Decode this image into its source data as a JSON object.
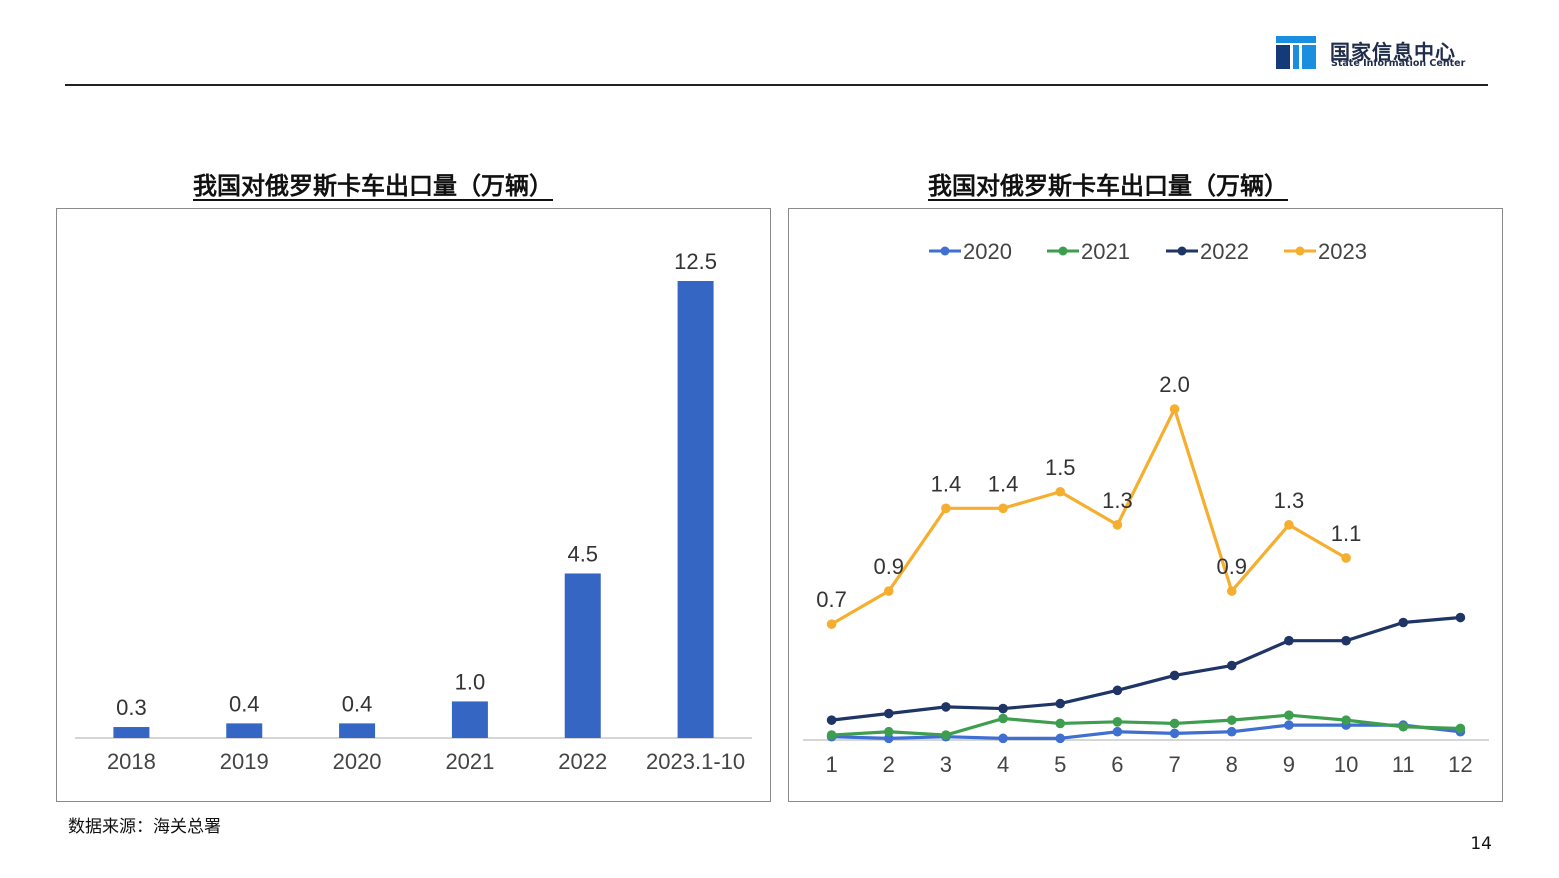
{
  "header": {
    "logo_cn": "国家信息中心",
    "logo_en": "State Information Center",
    "logo_colors": [
      "#1a8fe0",
      "#153a7a"
    ]
  },
  "source": "数据来源：海关总署",
  "page_number": "14",
  "chart_data": [
    {
      "type": "bar",
      "title": "我国对俄罗斯卡车出口量（万辆）",
      "categories": [
        "2018",
        "2019",
        "2020",
        "2021",
        "2022",
        "2023.1-10"
      ],
      "values": [
        0.3,
        0.4,
        0.4,
        1.0,
        4.5,
        12.5
      ],
      "value_labels": [
        "0.3",
        "0.4",
        "0.4",
        "1.0",
        "4.5",
        "12.5"
      ],
      "bar_color": "#3566c4",
      "ylim": [
        0,
        12.5
      ],
      "grid": false
    },
    {
      "type": "line",
      "title": "我国对俄罗斯卡车出口量（万辆）",
      "x": [
        "1",
        "2",
        "3",
        "4",
        "5",
        "6",
        "7",
        "8",
        "9",
        "10",
        "11",
        "12"
      ],
      "ylim": [
        0,
        2.0
      ],
      "grid": false,
      "legend_position": "top",
      "series": [
        {
          "name": "2020",
          "color": "#3f6fd0",
          "values": [
            0.02,
            0.01,
            0.02,
            0.01,
            0.01,
            0.05,
            0.04,
            0.05,
            0.09,
            0.09,
            0.09,
            0.05
          ]
        },
        {
          "name": "2021",
          "color": "#3e9e4f",
          "values": [
            0.03,
            0.05,
            0.03,
            0.13,
            0.1,
            0.11,
            0.1,
            0.12,
            0.15,
            0.12,
            0.08,
            0.07
          ]
        },
        {
          "name": "2022",
          "color": "#1f3566",
          "values": [
            0.12,
            0.16,
            0.2,
            0.19,
            0.22,
            0.3,
            0.39,
            0.45,
            0.6,
            0.6,
            0.71,
            0.74
          ]
        },
        {
          "name": "2023",
          "color": "#f5ae2e",
          "values": [
            0.7,
            0.9,
            1.4,
            1.4,
            1.5,
            1.3,
            2.0,
            0.9,
            1.3,
            1.1,
            null,
            null
          ],
          "value_labels": [
            "0.7",
            "0.9",
            "1.4",
            "1.4",
            "1.5",
            "1.3",
            "2.0",
            "0.9",
            "1.3",
            "1.1",
            null,
            null
          ]
        }
      ]
    }
  ]
}
